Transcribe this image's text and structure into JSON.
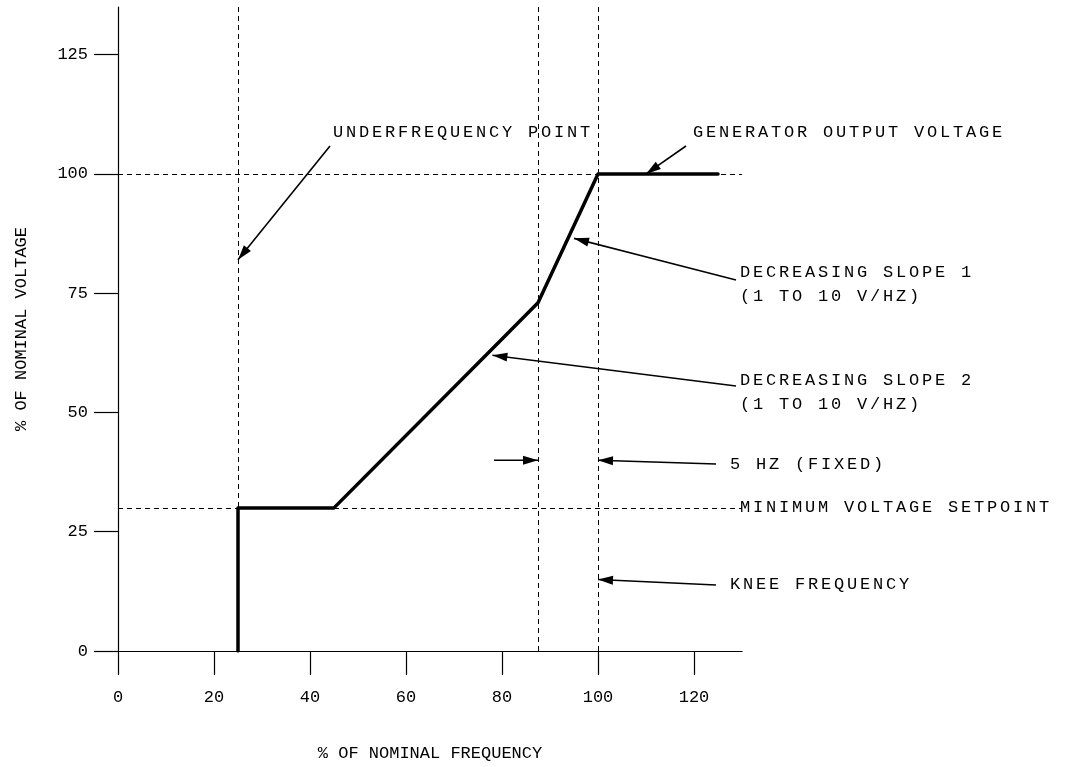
{
  "chart_data": {
    "type": "line",
    "xlabel": "% OF NOMINAL FREQUENCY",
    "ylabel": "% OF NOMINAL VOLTAGE",
    "x": [
      25,
      25,
      45,
      87.5,
      100,
      125
    ],
    "series": [
      {
        "color": "#000000",
        "values": [
          0,
          30,
          30,
          73,
          100,
          100
        ]
      }
    ],
    "xlim": [
      0,
      130
    ],
    "xticks": [
      0,
      20,
      40,
      60,
      80,
      100,
      120
    ],
    "ylim": [
      0,
      135
    ],
    "yticks": [
      0,
      25,
      50,
      75,
      100,
      125
    ],
    "grid": false,
    "marker": "none",
    "line_style": "solid",
    "ref_lines": [
      {
        "axis": "x",
        "value": 25,
        "color": "#000000",
        "line_style": "dashed"
      },
      {
        "axis": "x",
        "value": 87.5,
        "color": "#000000",
        "line_style": "dashed"
      },
      {
        "axis": "x",
        "value": 100,
        "color": "#000000",
        "line_style": "dashed"
      },
      {
        "axis": "y",
        "value": 100,
        "color": "#000000",
        "line_style": "dashed"
      },
      {
        "axis": "y",
        "value": 30,
        "label": "MINIMUM VOLTAGE SETPOINT",
        "color": "#000000",
        "line_style": "dashed"
      }
    ],
    "annotations": [
      {
        "text": "UNDERFREQUENCY POINT",
        "x": 25,
        "y": 82
      },
      {
        "text": "GENERATOR OUTPUT VOLTAGE",
        "x": 110,
        "y": 100
      },
      {
        "text": "DECREASING SLOPE 1\n(1 TO 10 V/HZ)",
        "x": 95,
        "y": 86.5
      },
      {
        "text": "DECREASING SLOPE 2\n(1 TO 10 V/HZ)",
        "x": 78,
        "y": 62
      },
      {
        "text": "5 HZ (FIXED)",
        "x": 100,
        "y": 40
      },
      {
        "text": "KNEE FREQUENCY",
        "x": 100,
        "y": 15
      }
    ]
  }
}
